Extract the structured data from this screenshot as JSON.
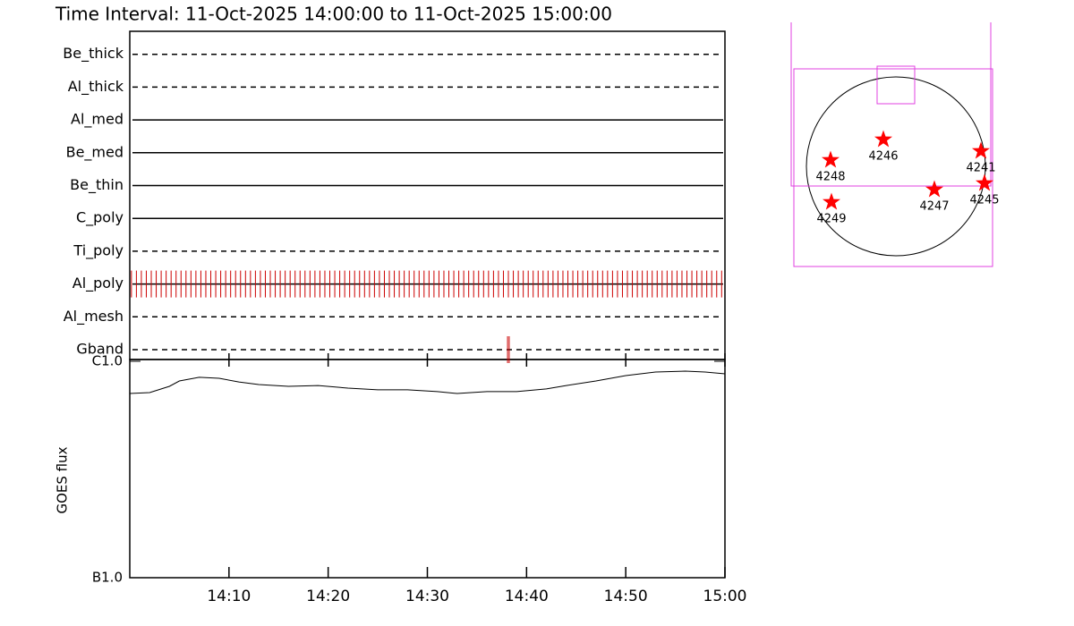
{
  "chart_data": [
    {
      "type": "timeline",
      "title": "Time Interval: 11-Oct-2025 14:00:00 to 11-Oct-2025 15:00:00",
      "xlim": [
        "14:00:00",
        "15:00:00"
      ],
      "color": "#cc0000",
      "filters": [
        {
          "name": "Be_thick",
          "style": "dashed",
          "times": []
        },
        {
          "name": "Al_thick",
          "style": "dashed",
          "times": []
        },
        {
          "name": "Al_med",
          "style": "solid",
          "times": []
        },
        {
          "name": "Be_med",
          "style": "solid",
          "times": []
        },
        {
          "name": "Be_thin",
          "style": "solid",
          "times": []
        },
        {
          "name": "C_poly",
          "style": "solid",
          "times": []
        },
        {
          "name": "Ti_poly",
          "style": "dashed",
          "times": []
        },
        {
          "name": "Al_poly",
          "style": "solid",
          "times": [
            "14:00:10",
            "14:00:40",
            "14:01:10",
            "14:01:40",
            "14:02:10",
            "14:02:40",
            "14:03:10",
            "14:03:40",
            "14:04:10",
            "14:04:40",
            "14:05:10",
            "14:05:40",
            "14:06:10",
            "14:06:40",
            "14:07:10",
            "14:07:40",
            "14:08:10",
            "14:08:40",
            "14:09:10",
            "14:09:40",
            "14:10:10",
            "14:10:40",
            "14:11:10",
            "14:11:40",
            "14:12:10",
            "14:12:40",
            "14:13:10",
            "14:13:40",
            "14:14:10",
            "14:14:40",
            "14:15:10",
            "14:15:40",
            "14:16:10",
            "14:16:40",
            "14:17:10",
            "14:17:40",
            "14:18:10",
            "14:18:40",
            "14:19:10",
            "14:19:40",
            "14:20:10",
            "14:20:40",
            "14:21:10",
            "14:21:40",
            "14:22:10",
            "14:22:40",
            "14:23:10",
            "14:23:40",
            "14:24:10",
            "14:24:40",
            "14:25:10",
            "14:25:40",
            "14:26:10",
            "14:26:40",
            "14:27:10",
            "14:27:40",
            "14:28:10",
            "14:28:40",
            "14:29:10",
            "14:29:40",
            "14:30:10",
            "14:30:40",
            "14:31:10",
            "14:31:40",
            "14:32:10",
            "14:32:40",
            "14:33:10",
            "14:33:40",
            "14:34:10",
            "14:34:40",
            "14:35:10",
            "14:35:40",
            "14:36:10",
            "14:36:40",
            "14:37:10",
            "14:37:40",
            "14:38:10",
            "14:38:40",
            "14:39:10",
            "14:39:40",
            "14:40:10",
            "14:40:40",
            "14:41:10",
            "14:41:40",
            "14:42:10",
            "14:42:40",
            "14:43:10",
            "14:43:40",
            "14:44:10",
            "14:44:40",
            "14:45:10",
            "14:45:40",
            "14:46:10",
            "14:46:40",
            "14:47:10",
            "14:47:40",
            "14:48:10",
            "14:48:40",
            "14:49:10",
            "14:49:40",
            "14:50:10",
            "14:50:40",
            "14:51:10",
            "14:51:40",
            "14:52:10",
            "14:52:40",
            "14:53:10",
            "14:53:40",
            "14:54:10",
            "14:54:40",
            "14:55:10",
            "14:55:40",
            "14:56:10",
            "14:56:40",
            "14:57:10",
            "14:57:40",
            "14:58:10",
            "14:58:40",
            "14:59:10",
            "14:59:40"
          ]
        },
        {
          "name": "Al_mesh",
          "style": "dashed",
          "times": []
        },
        {
          "name": "Gband",
          "style": "dashed",
          "times": [
            "14:38:05",
            "14:38:15"
          ]
        }
      ]
    },
    {
      "type": "line",
      "ylabel": "GOES flux",
      "log": true,
      "color": "#000000",
      "xlim": [
        "14:00",
        "15:00"
      ],
      "xticks": [
        "14:10",
        "14:20",
        "14:30",
        "14:40",
        "14:50",
        "15:00"
      ],
      "ylim": [
        1e-07,
        1e-06
      ],
      "yticks": [
        {
          "value": 1e-07,
          "label": "B1.0"
        },
        {
          "value": 1e-06,
          "label": "C1.0"
        }
      ],
      "x": [
        "14:00",
        "14:02",
        "14:04",
        "14:05",
        "14:07",
        "14:09",
        "14:11",
        "14:13",
        "14:16",
        "14:19",
        "14:22",
        "14:25",
        "14:28",
        "14:31",
        "14:33",
        "14:36",
        "14:39",
        "14:42",
        "14:44",
        "14:47",
        "14:50",
        "14:53",
        "14:56",
        "14:58",
        "15:00"
      ],
      "values": [
        7.1e-07,
        7.17e-07,
        7.66e-07,
        8.11e-07,
        8.43e-07,
        8.35e-07,
        8.03e-07,
        7.81e-07,
        7.66e-07,
        7.73e-07,
        7.52e-07,
        7.38e-07,
        7.38e-07,
        7.24e-07,
        7.1e-07,
        7.24e-07,
        7.24e-07,
        7.45e-07,
        7.73e-07,
        8.11e-07,
        8.59e-07,
        8.92e-07,
        9.01e-07,
        8.92e-07,
        8.75e-07
      ]
    },
    {
      "type": "scatter",
      "color": "#ff0000",
      "labels": [
        "4246",
        "4241",
        "4248",
        "4245",
        "4247",
        "4249"
      ],
      "x": [
        -0.14,
        0.95,
        -0.73,
        0.99,
        0.43,
        -0.72
      ],
      "y": [
        0.3,
        0.17,
        0.07,
        -0.19,
        -0.26,
        -0.4
      ]
    }
  ]
}
